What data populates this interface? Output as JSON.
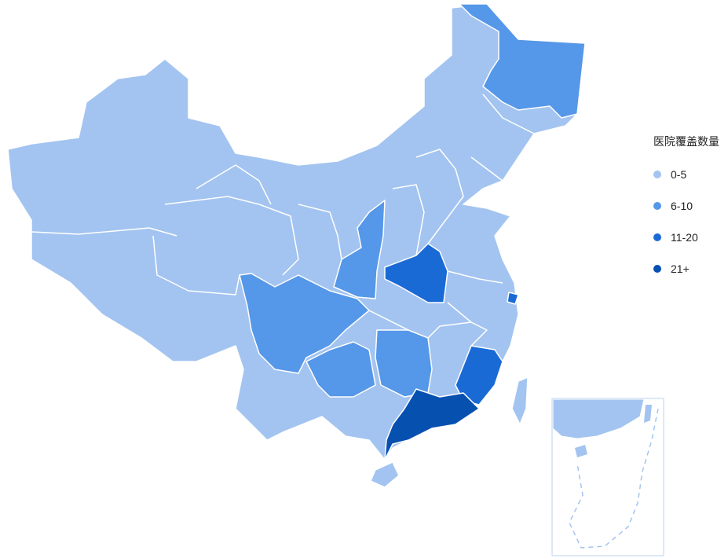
{
  "legend": {
    "title": "医院覆盖数量",
    "items": [
      {
        "label": "0-5",
        "color": "#a3c4f0"
      },
      {
        "label": "6-10",
        "color": "#5597e8"
      },
      {
        "label": "11-20",
        "color": "#1a6ad6"
      },
      {
        "label": "21+",
        "color": "#0650b0"
      }
    ]
  },
  "regions": [
    {
      "name": "黑龙江",
      "bucket": "6-10"
    },
    {
      "name": "陕西",
      "bucket": "6-10"
    },
    {
      "name": "四川",
      "bucket": "6-10"
    },
    {
      "name": "贵州",
      "bucket": "6-10"
    },
    {
      "name": "湖南",
      "bucket": "6-10"
    },
    {
      "name": "河南",
      "bucket": "11-20"
    },
    {
      "name": "福建",
      "bucket": "11-20"
    },
    {
      "name": "上海",
      "bucket": "11-20"
    },
    {
      "name": "广东",
      "bucket": "21+"
    }
  ]
}
